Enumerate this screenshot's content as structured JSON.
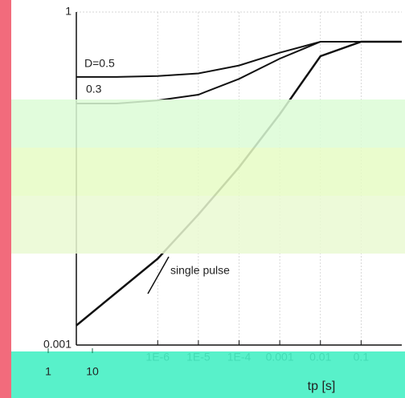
{
  "chart_data": {
    "type": "line",
    "xlabel": "tp [s]",
    "log_x": true,
    "log_y": true,
    "grid": true,
    "x": [
      1e-08,
      1e-07,
      1e-06,
      1e-05,
      0.0001,
      0.001,
      0.01,
      0.1,
      1
    ],
    "series": [
      {
        "name": "D=0.5",
        "color": "#111111",
        "values": [
          0.26,
          0.26,
          0.265,
          0.28,
          0.33,
          0.43,
          0.54,
          0.54,
          0.54
        ]
      },
      {
        "name": "0.3",
        "color": "#111111",
        "values": [
          0.15,
          0.15,
          0.16,
          0.18,
          0.25,
          0.38,
          0.54,
          0.54,
          0.54
        ]
      },
      {
        "name": "single pulse",
        "color": "#111111",
        "values": [
          0.0015,
          0.003,
          0.006,
          0.015,
          0.04,
          0.12,
          0.4,
          0.54,
          0.54
        ]
      }
    ],
    "xlim": [
      1e-08,
      1
    ],
    "ylim": [
      0.001,
      1
    ],
    "xticks": [
      {
        "value": 1e-06,
        "label": "1E-6"
      },
      {
        "value": 1e-05,
        "label": "1E-5"
      },
      {
        "value": 0.0001,
        "label": "1E-4"
      },
      0.001,
      0.01,
      0.1
    ],
    "yticks": [
      0.001,
      1
    ],
    "secondary_xticks": [
      1,
      10
    ]
  }
}
